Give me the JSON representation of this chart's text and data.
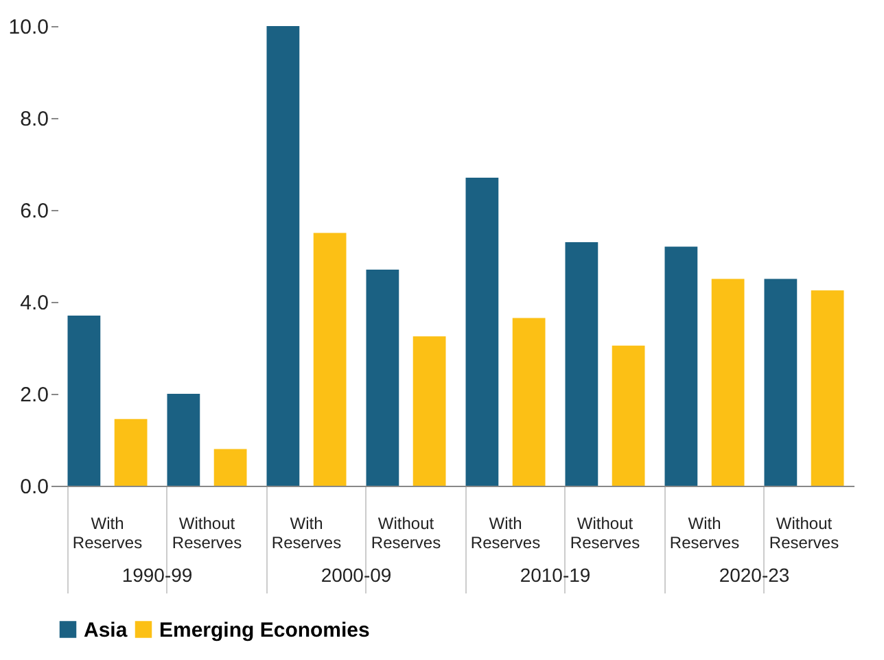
{
  "chart_data": {
    "type": "bar",
    "categories": [
      "With Reserves",
      "Without Reserves",
      "With Reserves",
      "Without Reserves",
      "With Reserves",
      "Without Reserves",
      "With Reserves",
      "Without Reserves"
    ],
    "series": [
      {
        "name": "Asia",
        "color": "#1b6183",
        "values": [
          3.7,
          2.0,
          10.0,
          4.7,
          6.7,
          5.3,
          5.2,
          4.5
        ]
      },
      {
        "name": "Emerging Economies",
        "color": "#fcc015",
        "values": [
          1.45,
          0.8,
          5.5,
          3.25,
          3.65,
          3.05,
          4.5,
          4.25
        ]
      }
    ],
    "annotations": [
      "1990-99",
      "2000-09",
      "2010-19",
      "2020-23"
    ],
    "ylim": [
      0,
      10
    ],
    "yticks": [
      {
        "value": 0,
        "label": "0.0"
      },
      {
        "value": 2,
        "label": "2.0"
      },
      {
        "value": 4,
        "label": "4.0"
      },
      {
        "value": 6,
        "label": "6.0"
      },
      {
        "value": 8,
        "label": "8.0"
      },
      {
        "value": 10,
        "label": "10.0"
      }
    ],
    "grid": false,
    "legend": "bottom"
  }
}
